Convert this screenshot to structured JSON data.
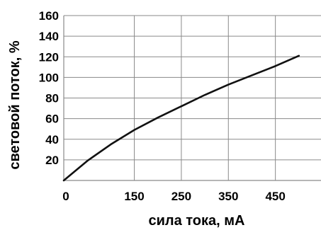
{
  "chart_data": {
    "type": "line",
    "xlabel": "сила тока, мА",
    "ylabel": "световой поток, %",
    "xlim": [
      0,
      550
    ],
    "ylim": [
      0,
      160
    ],
    "x_ticks": [
      0,
      150,
      250,
      350,
      450
    ],
    "y_ticks": [
      20,
      40,
      60,
      80,
      100,
      120,
      140,
      160
    ],
    "x_tick_labels": [
      "0",
      "150",
      "250",
      "350",
      "450"
    ],
    "y_tick_labels": [
      "20",
      "40",
      "60",
      "80",
      "100",
      "120",
      "140",
      "160"
    ],
    "grid": true,
    "series": [
      {
        "color": "#111111",
        "x": [
          0,
          50,
          100,
          150,
          200,
          250,
          300,
          350,
          400,
          450,
          500
        ],
        "y": [
          0,
          19,
          35,
          49,
          61,
          72,
          83,
          93,
          102,
          111,
          121
        ]
      }
    ]
  }
}
